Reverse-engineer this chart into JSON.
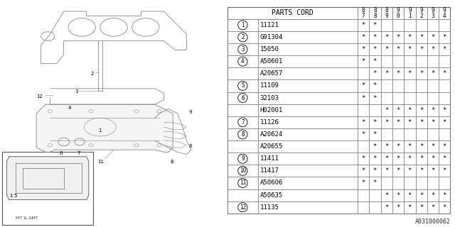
{
  "title": "",
  "bg_color": "#ffffff",
  "table_header": "PARTS CORD",
  "year_cols": [
    "8\n7",
    "8\n8",
    "8\n9",
    "9\n0",
    "9\n1",
    "9\n2",
    "9\n3",
    "9\n4"
  ],
  "rows": [
    {
      "num": 1,
      "part": "11121",
      "marks": [
        1,
        1,
        0,
        0,
        0,
        0,
        0,
        0
      ]
    },
    {
      "num": 2,
      "part": "G91304",
      "marks": [
        1,
        1,
        1,
        1,
        1,
        1,
        1,
        1
      ]
    },
    {
      "num": 3,
      "part": "15050",
      "marks": [
        1,
        1,
        1,
        1,
        1,
        1,
        1,
        1
      ]
    },
    {
      "num": 4,
      "part": "A50601",
      "marks": [
        1,
        1,
        0,
        0,
        0,
        0,
        0,
        0
      ]
    },
    {
      "num": 4,
      "part": "A20657",
      "marks": [
        0,
        1,
        1,
        1,
        1,
        1,
        1,
        1
      ]
    },
    {
      "num": 5,
      "part": "11109",
      "marks": [
        1,
        1,
        0,
        0,
        0,
        0,
        0,
        0
      ]
    },
    {
      "num": 6,
      "part": "32103",
      "marks": [
        1,
        1,
        0,
        0,
        0,
        0,
        0,
        0
      ]
    },
    {
      "num": 6,
      "part": "H02001",
      "marks": [
        0,
        0,
        1,
        1,
        1,
        1,
        1,
        1
      ]
    },
    {
      "num": 7,
      "part": "11126",
      "marks": [
        1,
        1,
        1,
        1,
        1,
        1,
        1,
        1
      ]
    },
    {
      "num": 8,
      "part": "A20624",
      "marks": [
        1,
        1,
        0,
        0,
        0,
        0,
        0,
        0
      ]
    },
    {
      "num": 8,
      "part": "A20655",
      "marks": [
        0,
        1,
        1,
        1,
        1,
        1,
        1,
        1
      ]
    },
    {
      "num": 9,
      "part": "11411",
      "marks": [
        1,
        1,
        1,
        1,
        1,
        1,
        1,
        1
      ]
    },
    {
      "num": 10,
      "part": "11417",
      "marks": [
        1,
        1,
        1,
        1,
        1,
        1,
        1,
        1
      ]
    },
    {
      "num": 11,
      "part": "A50606",
      "marks": [
        1,
        1,
        0,
        0,
        0,
        0,
        0,
        0
      ]
    },
    {
      "num": 11,
      "part": "A50635",
      "marks": [
        0,
        0,
        1,
        1,
        1,
        1,
        1,
        1
      ]
    },
    {
      "num": 12,
      "part": "11135",
      "marks": [
        0,
        0,
        1,
        1,
        1,
        1,
        1,
        1
      ]
    }
  ],
  "watermark": "A031000062",
  "diagram_note": "MT & AMT",
  "line_color": "#888888",
  "text_color": "#000000",
  "font_size": 6.5,
  "header_font_size": 7.0
}
